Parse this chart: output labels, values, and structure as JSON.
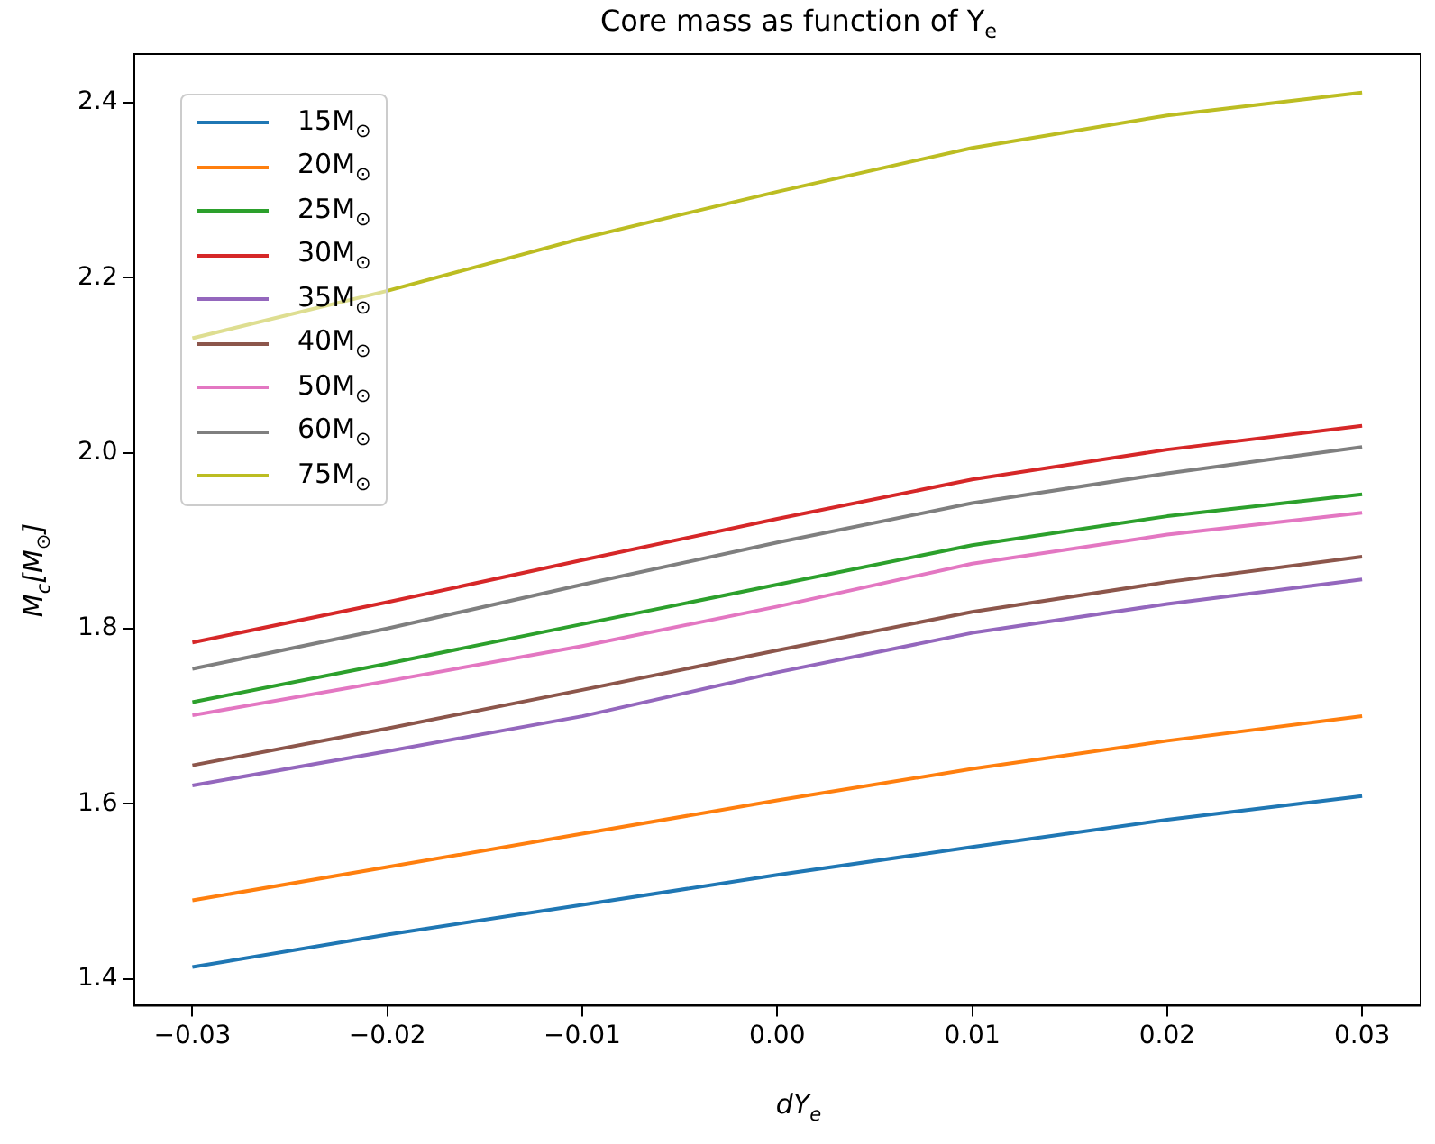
{
  "chart_data": {
    "type": "line",
    "title": "Core mass as function of Y$_{e}$",
    "xlabel": "dY$_{e}$",
    "ylabel": "M$_{c}$[M$_{⊙}$]",
    "x": [
      -0.03,
      -0.02,
      -0.01,
      0.0,
      0.01,
      0.02,
      0.03
    ],
    "xlim": [
      -0.033,
      0.033
    ],
    "xticks": [
      {
        "value": -0.03,
        "label": "−0.03"
      },
      {
        "value": -0.02,
        "label": "−0.02"
      },
      {
        "value": -0.01,
        "label": "−0.01"
      },
      {
        "value": 0,
        "label": "0.00"
      },
      0.01,
      0.02,
      0.03
    ],
    "ylim": [
      1.37,
      2.455
    ],
    "yticks": [
      1.4,
      1.6,
      1.8,
      {
        "value": 2,
        "label": "2.0"
      },
      2.2,
      2.4
    ],
    "grid": false,
    "legend": "top left",
    "marker": "none",
    "line_style": "solid",
    "series": [
      {
        "name": "15M$_{⊙}$",
        "color": "#1f77b4",
        "values": [
          1.414,
          1.451,
          1.485,
          1.519,
          1.551,
          1.582,
          1.609
        ]
      },
      {
        "name": "20M$_{⊙}$",
        "color": "#ff7f0e",
        "values": [
          1.49,
          1.528,
          1.566,
          1.604,
          1.64,
          1.672,
          1.7
        ]
      },
      {
        "name": "25M$_{⊙}$",
        "color": "#2ca02c",
        "values": [
          1.716,
          1.76,
          1.805,
          1.85,
          1.895,
          1.928,
          1.953
        ]
      },
      {
        "name": "30M$_{⊙}$",
        "color": "#d62728",
        "values": [
          1.784,
          1.83,
          1.878,
          1.925,
          1.97,
          2.004,
          2.031
        ]
      },
      {
        "name": "35M$_{⊙}$",
        "color": "#9467bd",
        "values": [
          1.621,
          1.66,
          1.7,
          1.75,
          1.795,
          1.828,
          1.856
        ]
      },
      {
        "name": "40M$_{⊙}$",
        "color": "#8c564b",
        "values": [
          1.644,
          1.686,
          1.73,
          1.775,
          1.819,
          1.853,
          1.882
        ]
      },
      {
        "name": "50M$_{⊙}$",
        "color": "#e377c2",
        "values": [
          1.701,
          1.74,
          1.78,
          1.825,
          1.874,
          1.907,
          1.932
        ]
      },
      {
        "name": "60M$_{⊙}$",
        "color": "#7f7f7f",
        "values": [
          1.754,
          1.8,
          1.85,
          1.898,
          1.943,
          1.977,
          2.007
        ]
      },
      {
        "name": "75M$_{⊙}$",
        "color": "#bcbd22",
        "values": [
          2.131,
          2.185,
          2.245,
          2.298,
          2.348,
          2.385,
          2.411
        ]
      }
    ]
  }
}
